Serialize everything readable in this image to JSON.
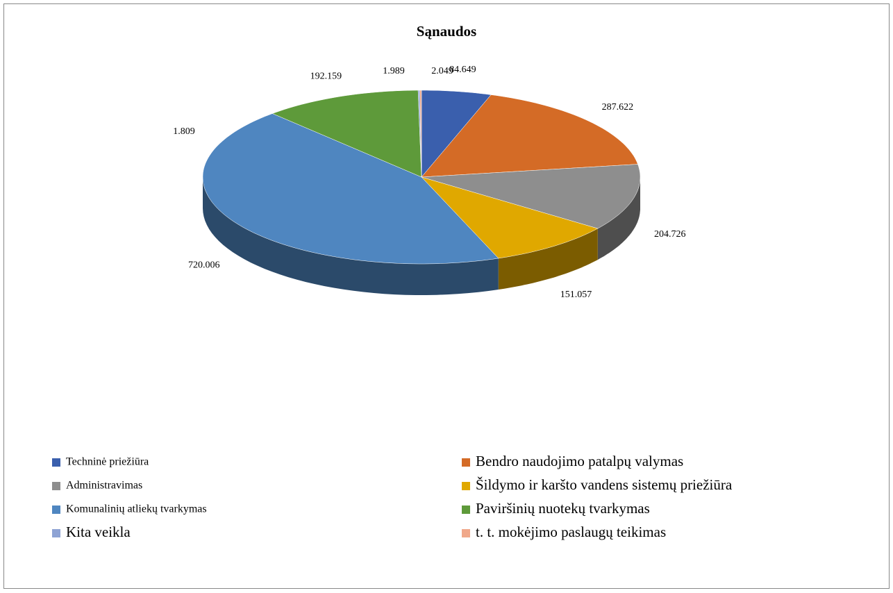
{
  "chart_data": {
    "type": "pie",
    "title": "Sąnaudos",
    "categories": [
      "Techninė priežiūra",
      "Bendro naudojimo patalpų valymas",
      "Administravimas",
      "Šildymo ir karšto vandens sistemų priežiūra",
      "Komunalinių atliekų tvarkymas",
      "Paviršinių nuotekų tvarkymas",
      "Kita veikla",
      "t. t. mokėjimo paslaugų teikimas"
    ],
    "values": [
      84.649,
      287.622,
      204.726,
      151.057,
      720.006,
      192.159,
      1.989,
      2.049
    ],
    "colors": [
      "#3a5fad",
      "#d46b26",
      "#8e8e8e",
      "#e0a800",
      "#4f86c0",
      "#5e9a3a",
      "#8ea3d4",
      "#f0a88a"
    ],
    "annotations": [
      "1.809"
    ],
    "legend": "bottom"
  }
}
